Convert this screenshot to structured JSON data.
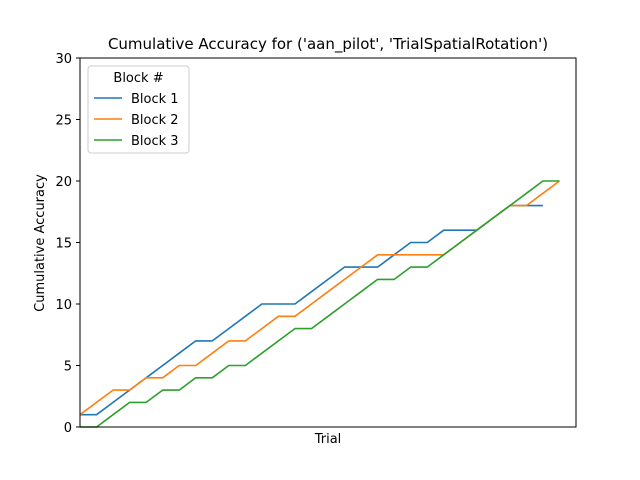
{
  "chart_data": {
    "type": "line",
    "title": "Cumulative Accuracy for ('aan_pilot', 'TrialSpatialRotation')",
    "xlabel": "Trial",
    "ylabel": "Cumulative Accuracy",
    "xlim": [
      0,
      30
    ],
    "ylim": [
      0,
      30
    ],
    "yticks": [
      0,
      5,
      10,
      15,
      20,
      25,
      30
    ],
    "grid": false,
    "legend": {
      "title": "Block #",
      "placement": "top-left"
    },
    "series": [
      {
        "name": "Block 1",
        "color": "#1f77b4",
        "x": [
          0,
          1,
          2,
          3,
          4,
          5,
          6,
          7,
          8,
          9,
          10,
          11,
          12,
          13,
          14,
          15,
          16,
          17,
          18,
          19,
          20,
          21,
          22,
          23,
          24,
          25,
          26,
          27,
          28
        ],
        "y": [
          1,
          1,
          2,
          3,
          4,
          5,
          6,
          7,
          7,
          8,
          9,
          10,
          10,
          10,
          11,
          12,
          13,
          13,
          13,
          14,
          15,
          15,
          16,
          16,
          16,
          17,
          18,
          18,
          18
        ]
      },
      {
        "name": "Block 2",
        "color": "#ff7f0e",
        "x": [
          0,
          1,
          2,
          3,
          4,
          5,
          6,
          7,
          8,
          9,
          10,
          11,
          12,
          13,
          14,
          15,
          16,
          17,
          18,
          19,
          20,
          21,
          22,
          23,
          24,
          25,
          26,
          27,
          28,
          29
        ],
        "y": [
          1,
          2,
          3,
          3,
          4,
          4,
          5,
          5,
          6,
          7,
          7,
          8,
          9,
          9,
          10,
          11,
          12,
          13,
          14,
          14,
          14,
          14,
          14,
          15,
          16,
          17,
          18,
          18,
          19,
          20
        ]
      },
      {
        "name": "Block 3",
        "color": "#2ca02c",
        "x": [
          0,
          1,
          2,
          3,
          4,
          5,
          6,
          7,
          8,
          9,
          10,
          11,
          12,
          13,
          14,
          15,
          16,
          17,
          18,
          19,
          20,
          21,
          22,
          23,
          24,
          25,
          26,
          27,
          28,
          29
        ],
        "y": [
          0,
          0,
          1,
          2,
          2,
          3,
          3,
          4,
          4,
          5,
          5,
          6,
          7,
          8,
          8,
          9,
          10,
          11,
          12,
          12,
          13,
          13,
          14,
          15,
          16,
          17,
          18,
          19,
          20,
          20
        ]
      }
    ]
  }
}
